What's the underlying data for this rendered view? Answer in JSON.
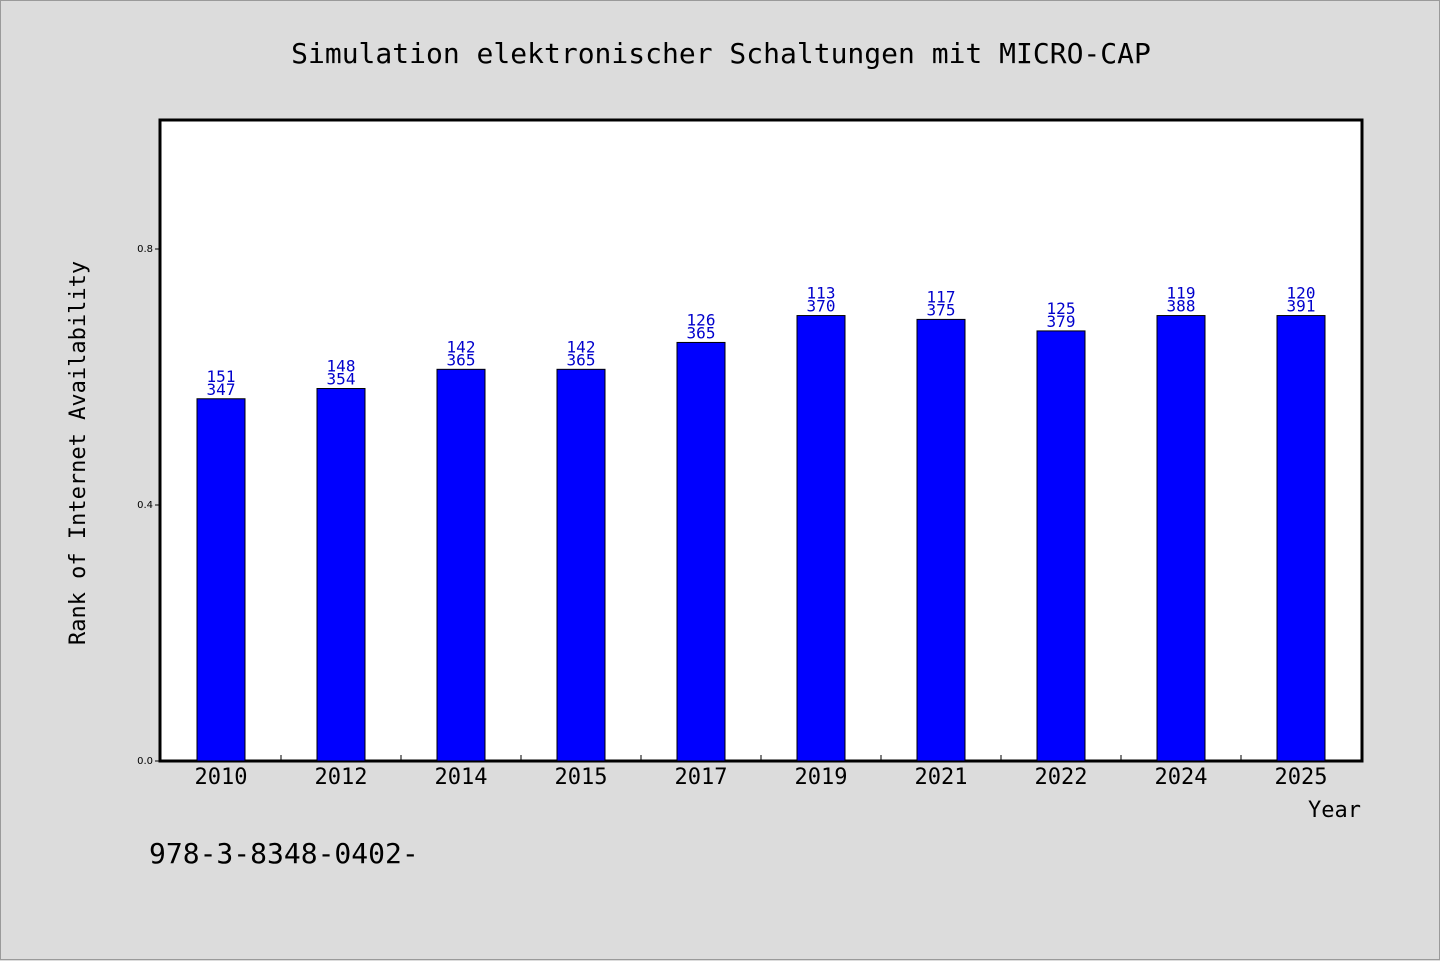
{
  "chart_data": {
    "type": "bar",
    "title": "Simulation elektronischer Schaltungen mit MICRO-CAP",
    "xlabel": "Year",
    "ylabel": "Rank of Internet Availability",
    "categories": [
      "2010",
      "2012",
      "2014",
      "2015",
      "2017",
      "2019",
      "2021",
      "2022",
      "2024",
      "2025"
    ],
    "values": [
      0.566,
      0.582,
      0.612,
      0.612,
      0.654,
      0.696,
      0.69,
      0.672,
      0.696,
      0.696
    ],
    "labels_top": [
      "151",
      "148",
      "142",
      "142",
      "126",
      "113",
      "117",
      "125",
      "119",
      "120"
    ],
    "labels_bottom": [
      "347",
      "354",
      "365",
      "365",
      "365",
      "370",
      "375",
      "379",
      "388",
      "391"
    ],
    "ylim": [
      0,
      1.0
    ],
    "yticks": [
      "0.0",
      "0.4",
      "0.8"
    ],
    "grid": false,
    "bar_color": "#0000ff",
    "label_color": "#0000cc",
    "background": "#dcdcdc",
    "plot_background": "#ffffff"
  },
  "footer": "978-3-8348-0402-"
}
